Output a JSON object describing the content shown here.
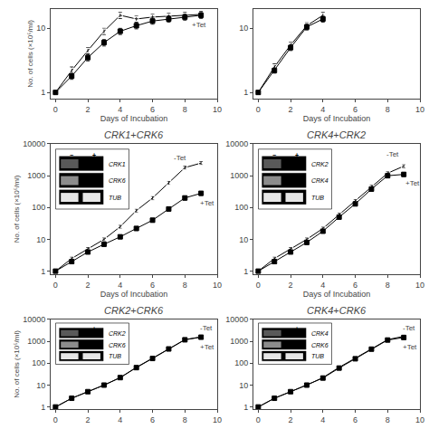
{
  "chart_data": [
    {
      "type": "line",
      "xlabel": "Days of Incubation",
      "ylabel": "No. of cells (×10⁵/ml)",
      "x": [
        0,
        1,
        2,
        3,
        4,
        5,
        6,
        7,
        8,
        9
      ],
      "series": [
        {
          "marker": "square-open",
          "color": "#000000",
          "line_style": "solid",
          "values": [
            1,
            2.2,
            4.5,
            9,
            16,
            14,
            15,
            15.5,
            16,
            16.5
          ],
          "errors": [
            0,
            0.3,
            0.5,
            1.0,
            1.8,
            1.5,
            1.6,
            1.7,
            1.8,
            1.9
          ]
        },
        {
          "marker": "square",
          "color": "#000000",
          "line_style": "solid",
          "values": [
            1,
            1.8,
            3.5,
            6,
            9,
            11,
            13,
            14,
            15,
            16
          ],
          "errors": [
            0,
            0.2,
            0.4,
            0.7,
            1.0,
            1.2,
            1.4,
            1.5,
            1.6,
            1.7
          ]
        }
      ],
      "xlim": [
        -0.3,
        10
      ],
      "xticks": [
        0,
        2,
        4,
        6,
        8,
        10
      ],
      "ylim": [
        0.8,
        20
      ],
      "yticks": [
        1,
        10
      ],
      "log": "y",
      "grid": false,
      "annotations": [
        {
          "text": "+Tet",
          "x": 8.3,
          "y": 14.5
        }
      ]
    },
    {
      "type": "line",
      "xlabel": "Days of Incubation",
      "x": [
        0,
        1,
        2,
        3,
        4
      ],
      "series": [
        {
          "marker": "square-open",
          "color": "#000000",
          "line_style": "solid",
          "values": [
            1,
            2.5,
            5.5,
            11,
            16
          ],
          "errors": [
            0,
            0.3,
            0.6,
            1.2,
            1.8
          ]
        },
        {
          "marker": "square",
          "color": "#000000",
          "line_style": "solid",
          "values": [
            1,
            2.2,
            5,
            10.5,
            14
          ],
          "errors": [
            0,
            0.2,
            0.5,
            1.1,
            1.5
          ]
        }
      ],
      "xlim": [
        -0.3,
        10
      ],
      "xticks": [
        0,
        2,
        4,
        6,
        8,
        10
      ],
      "ylim": [
        0.8,
        20
      ],
      "yticks": [
        1,
        10
      ],
      "log": "y",
      "grid": false
    },
    {
      "type": "line",
      "title": "CRK1+CRK6",
      "xlabel": "Days of Incubation",
      "ylabel": "No. of cells (×10⁵/ml)",
      "x": [
        0,
        1,
        2,
        3,
        4,
        5,
        6,
        7,
        8,
        9
      ],
      "series": [
        {
          "marker": "square-open",
          "color": "#000000",
          "line_style": "solid",
          "values": [
            1,
            2.5,
            5,
            10,
            25,
            80,
            200,
            600,
            1800,
            2500
          ],
          "errors": [
            0,
            0.3,
            0.6,
            1.2,
            3.0,
            10.0,
            25.0,
            80.0,
            220.0,
            300.0
          ]
        },
        {
          "marker": "square",
          "color": "#000000",
          "line_style": "solid",
          "values": [
            1,
            2,
            4,
            7,
            12,
            22,
            40,
            90,
            200,
            280
          ],
          "errors": [
            0,
            0.3,
            0.5,
            0.8,
            1.5,
            3.0,
            5.0,
            12.0,
            28.0,
            40.0
          ]
        }
      ],
      "xlim": [
        -0.3,
        10
      ],
      "xticks": [
        0,
        2,
        4,
        6,
        8,
        10
      ],
      "ylim": [
        0.8,
        10000
      ],
      "yticks": [
        1,
        10,
        100,
        1000,
        10000
      ],
      "log": "y",
      "grid": false,
      "annotations": [
        {
          "text": "-Tet",
          "x": 7.2,
          "y": 2000
        },
        {
          "text": "+Tet",
          "x": 8.8,
          "y": 230
        }
      ],
      "inset": {
        "lanes": [
          "−",
          "+"
        ],
        "rows": [
          "CRK1",
          "CRK6",
          "TUB"
        ],
        "color": "#000000",
        "band_colors": [
          [
            "#595959",
            null
          ],
          [
            "#8c8c8c",
            null
          ],
          [
            "#e6e6e6",
            "#e6e6e6"
          ]
        ]
      }
    },
    {
      "type": "line",
      "title": "CRK4+CRK2",
      "xlabel": "Days of Incubation",
      "x": [
        0,
        1,
        2,
        3,
        4,
        5,
        6,
        7,
        8,
        9
      ],
      "series": [
        {
          "marker": "square-open",
          "color": "#000000",
          "line_style": "solid",
          "values": [
            1,
            2.5,
            5,
            10,
            22,
            60,
            160,
            450,
            1200,
            2000
          ],
          "errors": [
            0,
            0.3,
            0.6,
            1.2,
            2.5,
            8.0,
            20.0,
            60.0,
            150.0,
            250.0
          ]
        },
        {
          "marker": "square",
          "color": "#000000",
          "line_style": "solid",
          "values": [
            1,
            2,
            4,
            8,
            18,
            50,
            130,
            380,
            1000,
            1100
          ],
          "errors": [
            0,
            0.3,
            0.5,
            1.0,
            2.0,
            6.0,
            16.0,
            50.0,
            130.0,
            150.0
          ]
        }
      ],
      "xlim": [
        -0.3,
        10
      ],
      "xticks": [
        0,
        2,
        4,
        6,
        8,
        10
      ],
      "ylim": [
        0.8,
        10000
      ],
      "yticks": [
        1,
        10,
        100,
        1000,
        10000
      ],
      "log": "y",
      "grid": false,
      "annotations": [
        {
          "text": "-Tet",
          "x": 7.8,
          "y": 2500
        },
        {
          "text": "+Tet",
          "x": 9.0,
          "y": 950
        }
      ],
      "inset": {
        "lanes": [
          "−",
          "+"
        ],
        "rows": [
          "CRK2",
          "CRK4",
          "TUB"
        ],
        "color": "#000000",
        "band_colors": [
          [
            "#595959",
            null
          ],
          [
            "#8c8c8c",
            null
          ],
          [
            "#e6e6e6",
            "#e6e6e6"
          ]
        ]
      }
    },
    {
      "type": "line",
      "title": "CRK2+CRK6",
      "ylabel": "No. of cells (×10⁵/ml)",
      "x": [
        0,
        1,
        2,
        3,
        4,
        5,
        6,
        7,
        8,
        9
      ],
      "series": [
        {
          "marker": "square-open",
          "color": "#000000",
          "line_style": "solid",
          "values": [
            1,
            2.5,
            5,
            10,
            22,
            65,
            170,
            460,
            1200,
            1600
          ],
          "errors": [
            0,
            0.3,
            0.6,
            1.2,
            2.5,
            8.0,
            20.0,
            60.0,
            150.0,
            200.0
          ]
        },
        {
          "marker": "square",
          "color": "#000000",
          "line_style": "solid",
          "values": [
            1,
            2.5,
            5,
            10,
            22,
            63,
            165,
            450,
            1180,
            1550
          ],
          "errors": [
            0,
            0.3,
            0.6,
            1.2,
            2.4,
            8.0,
            20.0,
            58.0,
            148.0,
            195.0
          ]
        }
      ],
      "xlim": [
        -0.3,
        10
      ],
      "xticks": [
        0,
        2,
        4,
        6,
        8,
        10
      ],
      "ylim": [
        0.8,
        10000
      ],
      "yticks": [
        1,
        10,
        100,
        1000,
        10000
      ],
      "log": "y",
      "grid": false,
      "annotations": [
        {
          "text": "-Tet",
          "x": 8.8,
          "y": 1700
        },
        {
          "text": "+Tet",
          "x": 8.8,
          "y": 1100
        }
      ],
      "inset": {
        "lanes": [
          "−",
          "+"
        ],
        "rows": [
          "CRK2",
          "CRK6",
          "TUB"
        ],
        "color": "#000000",
        "band_colors": [
          [
            "#595959",
            null
          ],
          [
            "#8c8c8c",
            null
          ],
          [
            "#e6e6e6",
            "#e6e6e6"
          ]
        ]
      }
    },
    {
      "type": "line",
      "title": "CRK4+CRK6",
      "x": [
        0,
        1,
        2,
        3,
        4,
        5,
        6,
        7,
        8,
        9
      ],
      "series": [
        {
          "marker": "square-open",
          "color": "#000000",
          "line_style": "solid",
          "values": [
            1,
            2.5,
            5,
            10,
            22,
            65,
            170,
            460,
            1200,
            1700
          ],
          "errors": [
            0,
            0.3,
            0.6,
            1.2,
            2.5,
            8.0,
            20.0,
            60.0,
            150.0,
            220.0
          ]
        },
        {
          "marker": "square",
          "color": "#000000",
          "line_style": "solid",
          "values": [
            1,
            2.5,
            5,
            10,
            21,
            60,
            160,
            440,
            1150,
            1500
          ],
          "errors": [
            0,
            0.3,
            0.6,
            1.2,
            2.3,
            7.5,
            19.0,
            57.0,
            145.0,
            190.0
          ]
        }
      ],
      "xlim": [
        -0.3,
        10
      ],
      "xticks": [
        0,
        2,
        4,
        6,
        8,
        10
      ],
      "ylim": [
        0.8,
        10000
      ],
      "yticks": [
        1,
        10,
        100,
        1000,
        10000
      ],
      "log": "y",
      "grid": false,
      "annotations": [
        {
          "text": "-Tet",
          "x": 8.8,
          "y": 1700
        },
        {
          "text": "+Tet",
          "x": 8.8,
          "y": 1100
        }
      ],
      "inset": {
        "lanes": [
          "−",
          "+"
        ],
        "rows": [
          "CRK4",
          "CRK6",
          "TUB"
        ],
        "color": "#000000",
        "band_colors": [
          [
            "#595959",
            null
          ],
          [
            "#8c8c8c",
            null
          ],
          [
            "#e6e6e6",
            "#e6e6e6"
          ]
        ]
      }
    }
  ]
}
